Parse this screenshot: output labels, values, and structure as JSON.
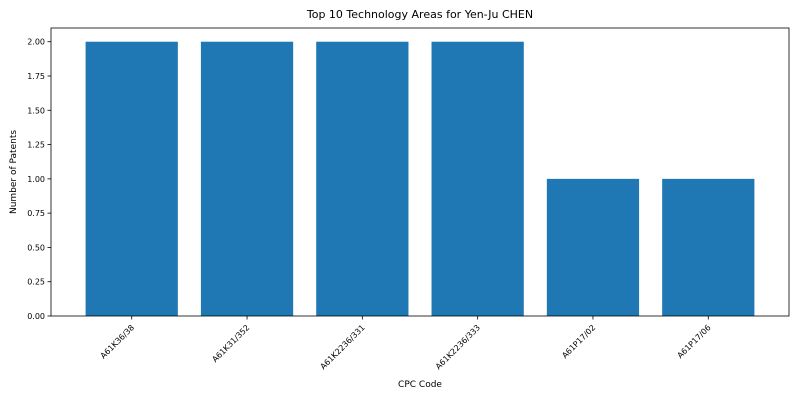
{
  "chart_data": {
    "type": "bar",
    "title": "Top 10 Technology Areas for Yen-Ju CHEN",
    "xlabel": "CPC Code",
    "ylabel": "Number of Patents",
    "categories": [
      "A61K36/38",
      "A61K31/352",
      "A61K2236/331",
      "A61K2236/333",
      "A61P17/02",
      "A61P17/06"
    ],
    "values": [
      2,
      2,
      2,
      2,
      1,
      1
    ],
    "yticks": [
      "0.00",
      "0.25",
      "0.50",
      "0.75",
      "1.00",
      "1.25",
      "1.50",
      "1.75",
      "2.00"
    ],
    "ylim": [
      0,
      2.1
    ],
    "bar_color": "#1f77b4",
    "grid": false,
    "legend": false
  }
}
